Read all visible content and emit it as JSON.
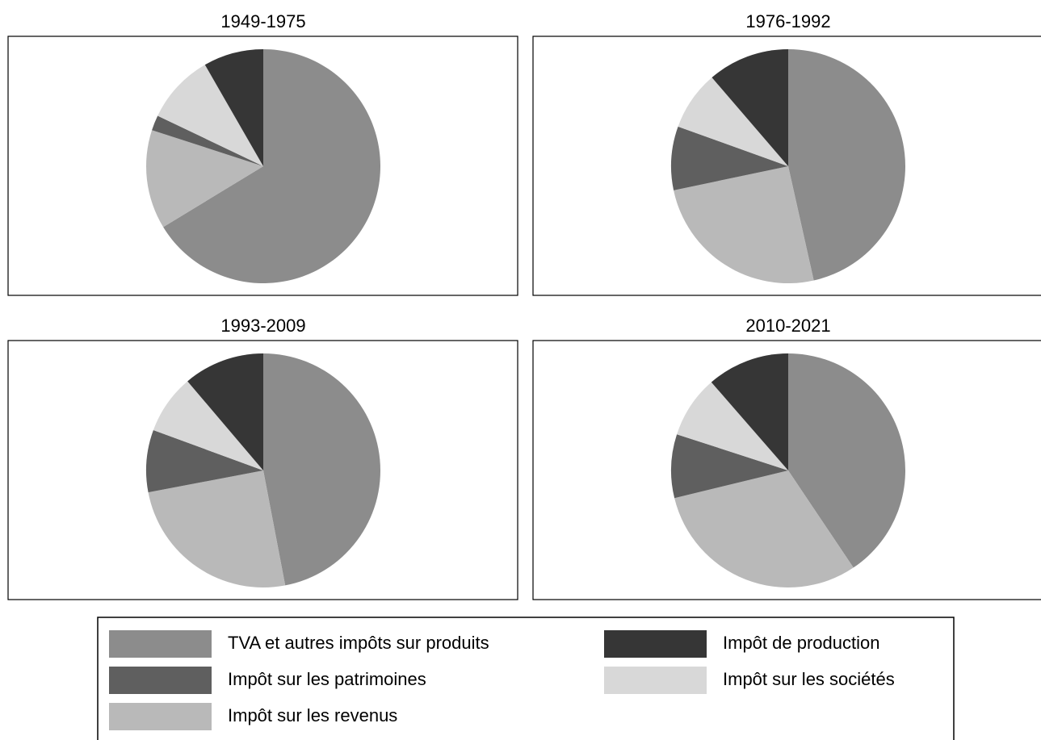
{
  "chart_data": [
    {
      "type": "pie",
      "title": "1949-1975",
      "values": [
        66.3,
        13.7,
        2.1,
        9.6,
        8.3
      ]
    },
    {
      "type": "pie",
      "title": "1976-1992",
      "values": [
        46.5,
        25.2,
        8.8,
        8.2,
        11.3
      ]
    },
    {
      "type": "pie",
      "title": "1993-2009",
      "values": [
        47,
        25,
        8.6,
        8.2,
        11.2
      ]
    },
    {
      "type": "pie",
      "title": "2010-2021",
      "values": [
        40.6,
        30.6,
        8.8,
        8.6,
        11.4
      ]
    }
  ],
  "legend": {
    "labels": [
      "TVA et autres impôts sur produits",
      "Impôt sur les revenus",
      "Impôt sur les patrimoines",
      "Impôt sur les sociétés",
      "Impôt de production"
    ],
    "colors": [
      "#8c8c8c",
      "#b9b9b9",
      "#5f5f5f",
      "#d8d8d8",
      "#363636"
    ]
  }
}
